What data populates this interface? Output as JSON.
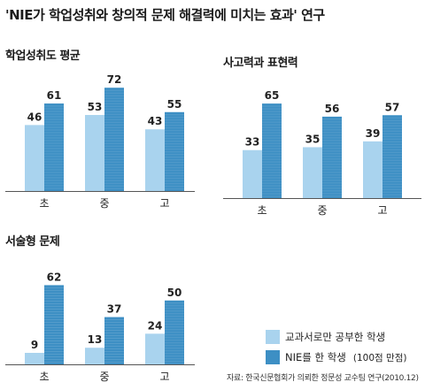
{
  "title": "'NIE가 학업성취와 창의적 문제 해결력에 미치는 효과' 연구",
  "colors": {
    "series_a": "#a9d3ee",
    "series_b": "#3d8fc4",
    "baseline": "#555555"
  },
  "legend": {
    "series_a": "교과서로만 공부한 학생",
    "series_b": "NIE를 한 학생",
    "series_b_note": "(100점 만점)"
  },
  "source": "자료: 한국신문협회가 의뢰한 정문성 교수팀 연구(2010.12)",
  "chart_data": [
    {
      "type": "bar",
      "title": "학업성취도 평균",
      "categories": [
        "초",
        "중",
        "고"
      ],
      "series": [
        {
          "name": "교과서로만 공부한 학생",
          "values": [
            46,
            53,
            43
          ]
        },
        {
          "name": "NIE를 한 학생",
          "values": [
            61,
            72,
            55
          ]
        }
      ],
      "ylim": [
        0,
        90
      ]
    },
    {
      "type": "bar",
      "title": "사고력과 표현력",
      "categories": [
        "초",
        "중",
        "고"
      ],
      "series": [
        {
          "name": "교과서로만 공부한 학생",
          "values": [
            33,
            35,
            39
          ]
        },
        {
          "name": "NIE를 한 학생",
          "values": [
            65,
            56,
            57
          ]
        }
      ],
      "ylim": [
        0,
        90
      ]
    },
    {
      "type": "bar",
      "title": "서술형 문제",
      "categories": [
        "초",
        "중",
        "고"
      ],
      "series": [
        {
          "name": "교과서로만 공부한 학생",
          "values": [
            9,
            13,
            24
          ]
        },
        {
          "name": "NIE를 한 학생",
          "values": [
            62,
            37,
            50
          ]
        }
      ],
      "ylim": [
        0,
        90
      ]
    }
  ]
}
